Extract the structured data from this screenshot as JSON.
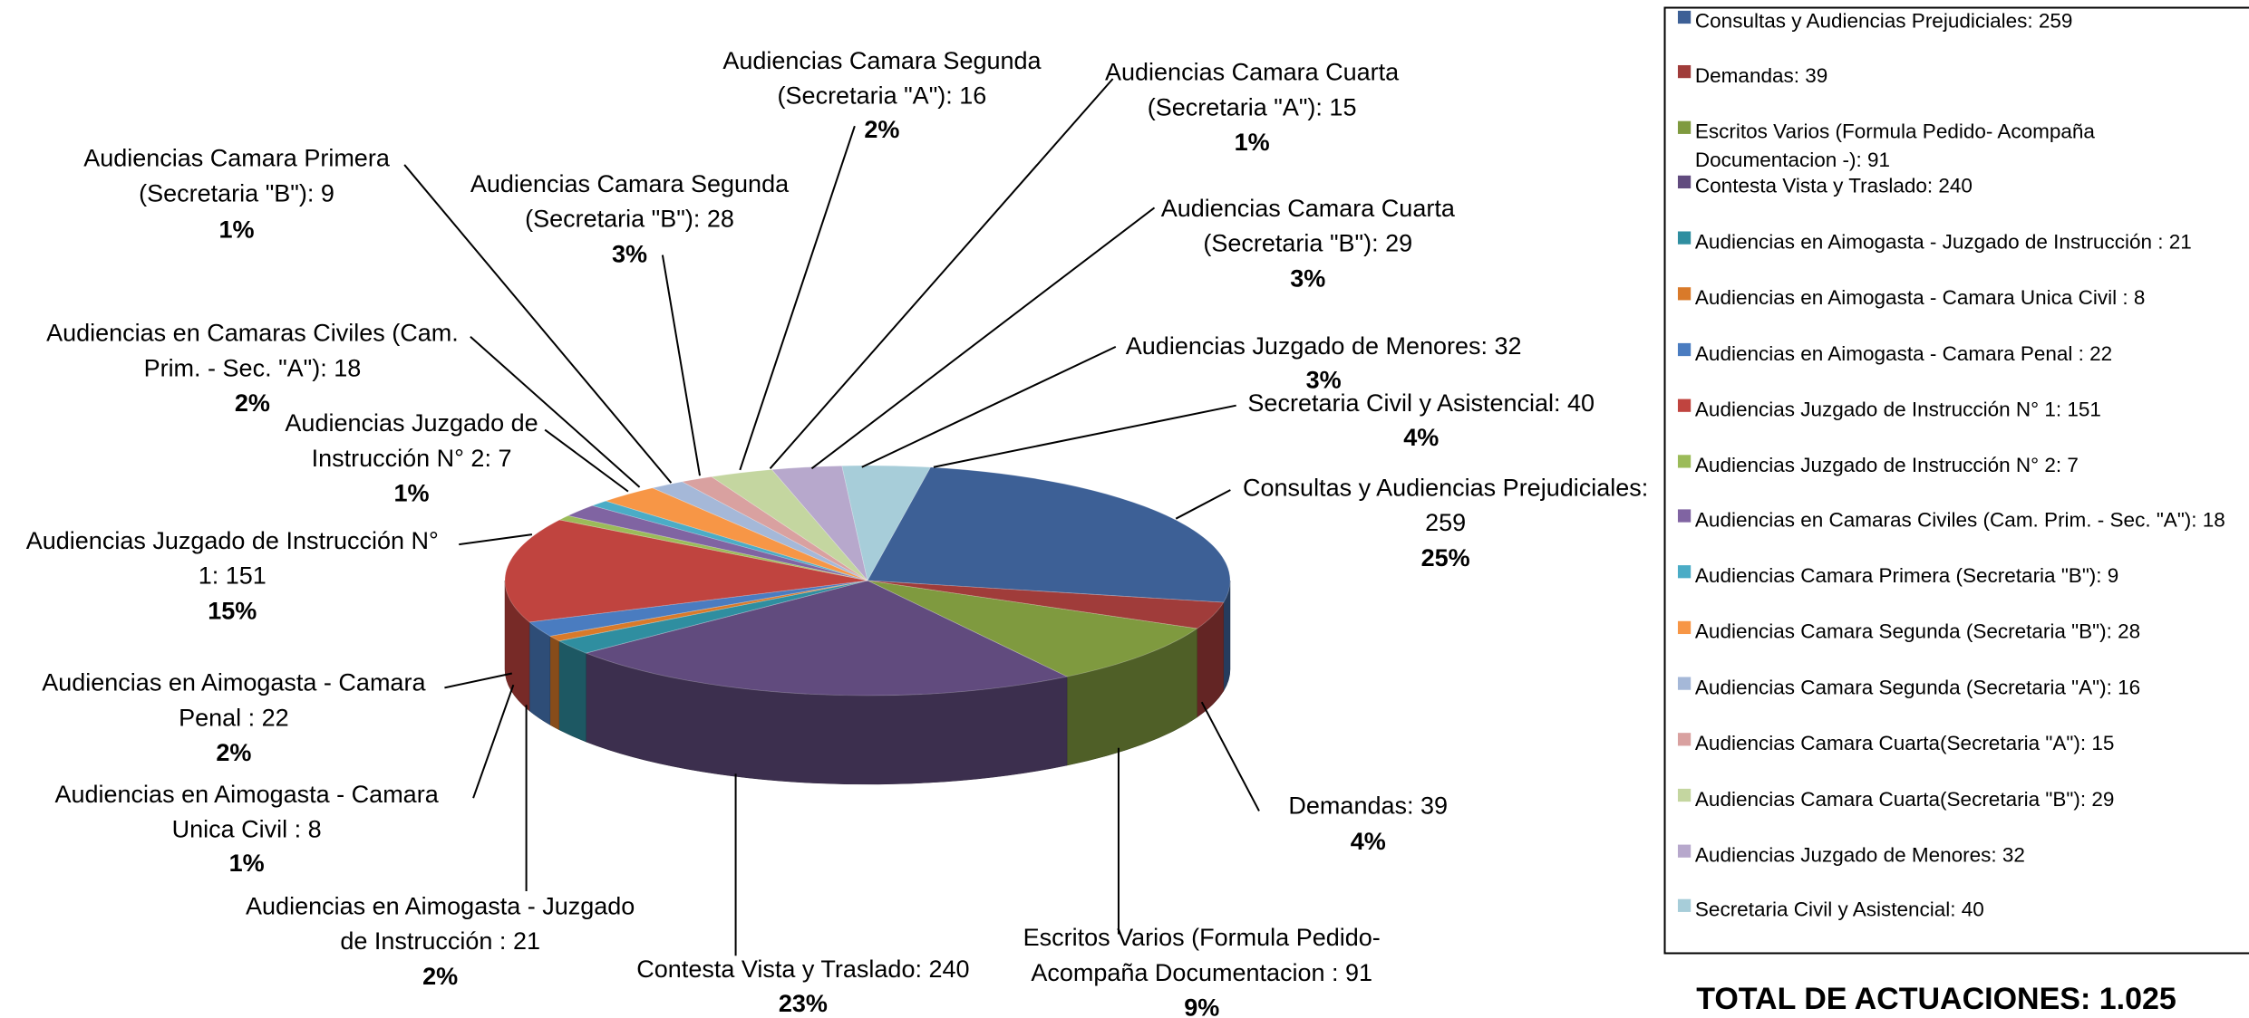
{
  "chart_data": {
    "type": "pie",
    "total_label": "TOTAL DE ACTUACIONES: 1.025",
    "values": [
      259,
      39,
      91,
      240,
      21,
      8,
      22,
      151,
      7,
      18,
      9,
      28,
      16,
      15,
      29,
      32,
      40
    ],
    "percents": [
      25,
      4,
      9,
      23,
      2,
      1,
      2,
      15,
      1,
      2,
      1,
      3,
      2,
      1,
      3,
      3,
      4
    ],
    "percent_labels": [
      "25%",
      "4%",
      "9%",
      "23%",
      "2%",
      "1%",
      "2%",
      "15%",
      "1%",
      "2%",
      "1%",
      "3%",
      "2%",
      "1%",
      "3%",
      "3%",
      "4%"
    ],
    "colors": [
      "#3d6096",
      "#a03c3a",
      "#7f9a3f",
      "#614b7e",
      "#2f8ea0",
      "#d97a2a",
      "#4a7cc0",
      "#c0443f",
      "#9bbb59",
      "#8064a2",
      "#4bacc6",
      "#f79646",
      "#a5b8d8",
      "#d9a1a0",
      "#c4d6a0",
      "#b7a8cc",
      "#a7cdd9"
    ],
    "slice_labels": [
      [
        "Consultas y Audiencias Prejudiciales:",
        "259"
      ],
      [
        "Demandas: 39"
      ],
      [
        "Escritos Varios (Formula Pedido-",
        "Acompaña Documentacion : 91"
      ],
      [
        "Contesta Vista y Traslado: 240"
      ],
      [
        "Audiencias en Aimogasta - Juzgado",
        "de Instrucción : 21"
      ],
      [
        "Audiencias en Aimogasta - Camara",
        "Unica Civil : 8"
      ],
      [
        "Audiencias en Aimogasta - Camara",
        "Penal :  22"
      ],
      [
        "Audiencias Juzgado de Instrucción N°",
        "1: 151"
      ],
      [
        "Audiencias Juzgado de",
        "Instrucción N° 2: 7"
      ],
      [
        "Audiencias en Camaras Civiles (Cam.",
        "Prim. - Sec. \"A\"): 18"
      ],
      [
        "Audiencias Camara Primera",
        "(Secretaria \"B\"): 9"
      ],
      [
        "Audiencias Camara Segunda",
        "(Secretaria \"B\"): 28"
      ],
      [
        "Audiencias Camara Segunda",
        "(Secretaria \"A\"): 16"
      ],
      [
        "Audiencias Camara Cuarta",
        "(Secretaria \"A\"): 15"
      ],
      [
        "Audiencias Camara Cuarta",
        "(Secretaria \"B\"): 29"
      ],
      [
        "Audiencias Juzgado de Menores: 32"
      ],
      [
        "Secretaria Civil y Asistencial: 40"
      ]
    ],
    "legend_labels": [
      [
        "Consultas y Audiencias Prejudiciales: 259"
      ],
      [
        "Demandas: 39"
      ],
      [
        "Escritos Varios (Formula Pedido- Acompaña",
        "Documentacion -): 91"
      ],
      [
        "Contesta Vista y Traslado: 240"
      ],
      [
        "Audiencias en Aimogasta - Juzgado de Instrucción : 21"
      ],
      [
        "Audiencias en Aimogasta - Camara Unica Civil : 8"
      ],
      [
        "Audiencias en Aimogasta - Camara Penal :  22"
      ],
      [
        "Audiencias Juzgado de Instrucción N° 1: 151"
      ],
      [
        "Audiencias Juzgado de Instrucción N° 2: 7"
      ],
      [
        "Audiencias en Camaras Civiles (Cam. Prim. - Sec. \"A\"): 18"
      ],
      [
        "Audiencias Camara Primera (Secretaria \"B\"): 9"
      ],
      [
        "Audiencias Camara Segunda  (Secretaria \"B\"): 28"
      ],
      [
        "Audiencias Camara Segunda  (Secretaria \"A\"): 16"
      ],
      [
        "Audiencias Camara Cuarta(Secretaria \"A\"): 15"
      ],
      [
        "Audiencias Camara Cuarta(Secretaria \"B\"): 29"
      ],
      [
        "Audiencias Juzgado de Menores: 32"
      ],
      [
        "Secretaria Civil y Asistencial: 40"
      ]
    ]
  }
}
